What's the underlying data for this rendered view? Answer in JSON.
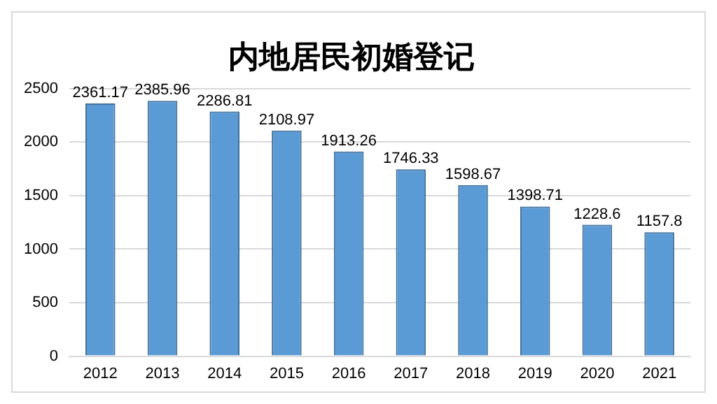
{
  "chart_data": {
    "type": "bar",
    "title": "内地居民初婚登记",
    "categories": [
      "2012",
      "2013",
      "2014",
      "2015",
      "2016",
      "2017",
      "2018",
      "2019",
      "2020",
      "2021"
    ],
    "values": [
      2361.17,
      2385.96,
      2286.81,
      2108.97,
      1913.26,
      1746.33,
      1598.67,
      1398.71,
      1228.6,
      1157.8
    ],
    "color": "#5b9bd5",
    "ylim": [
      0,
      2500
    ],
    "yticks": [
      0,
      500,
      1000,
      1500,
      2000,
      2500
    ],
    "grid": "y",
    "data_labels": true,
    "legend": false
  }
}
